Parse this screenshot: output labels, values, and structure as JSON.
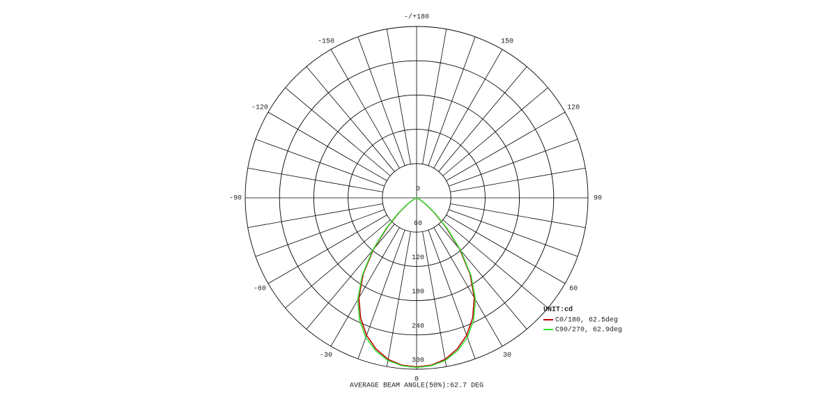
{
  "chart_data": {
    "type": "polar-line",
    "angles": [
      -90,
      -85,
      -80,
      -75,
      -70,
      -65,
      -60,
      -55,
      -50,
      -45,
      -40,
      -35,
      -30,
      -25,
      -20,
      -15,
      -10,
      -5,
      0,
      5,
      10,
      15,
      20,
      25,
      30,
      35,
      40,
      45,
      50,
      55,
      60,
      65,
      70,
      75,
      80,
      85,
      90
    ],
    "series": [
      {
        "name": "C0/180, 62.5deg",
        "color": "#c00000",
        "values": [
          0,
          0,
          0,
          0,
          1,
          3,
          8,
          20,
          40,
          72,
          117,
          163,
          202,
          232,
          256,
          274,
          287,
          294,
          296,
          294,
          287,
          274,
          256,
          232,
          202,
          163,
          117,
          72,
          40,
          20,
          8,
          3,
          1,
          0,
          0,
          0,
          0
        ]
      },
      {
        "name": "C90/270, 62.9deg",
        "color": "#33dd33",
        "values": [
          0,
          0,
          0,
          0,
          1,
          3,
          9,
          21,
          42,
          75,
          120,
          166,
          206,
          236,
          260,
          277,
          289,
          295,
          297,
          295,
          289,
          277,
          260,
          236,
          206,
          166,
          120,
          75,
          42,
          21,
          9,
          3,
          1,
          0,
          0,
          0,
          0
        ]
      }
    ],
    "rlim": [
      0,
      300
    ],
    "rticks": [
      0,
      60,
      120,
      180,
      240,
      300
    ],
    "angle_ticks": [
      0,
      30,
      60,
      90,
      120,
      150,
      {
        "value": 180,
        "label": "-/+180"
      },
      -150,
      -120,
      -90,
      -60,
      -30
    ],
    "legend_title": "UNIT:cd",
    "footer": "AVERAGE BEAM ANGLE(50%):62.7 DEG"
  }
}
